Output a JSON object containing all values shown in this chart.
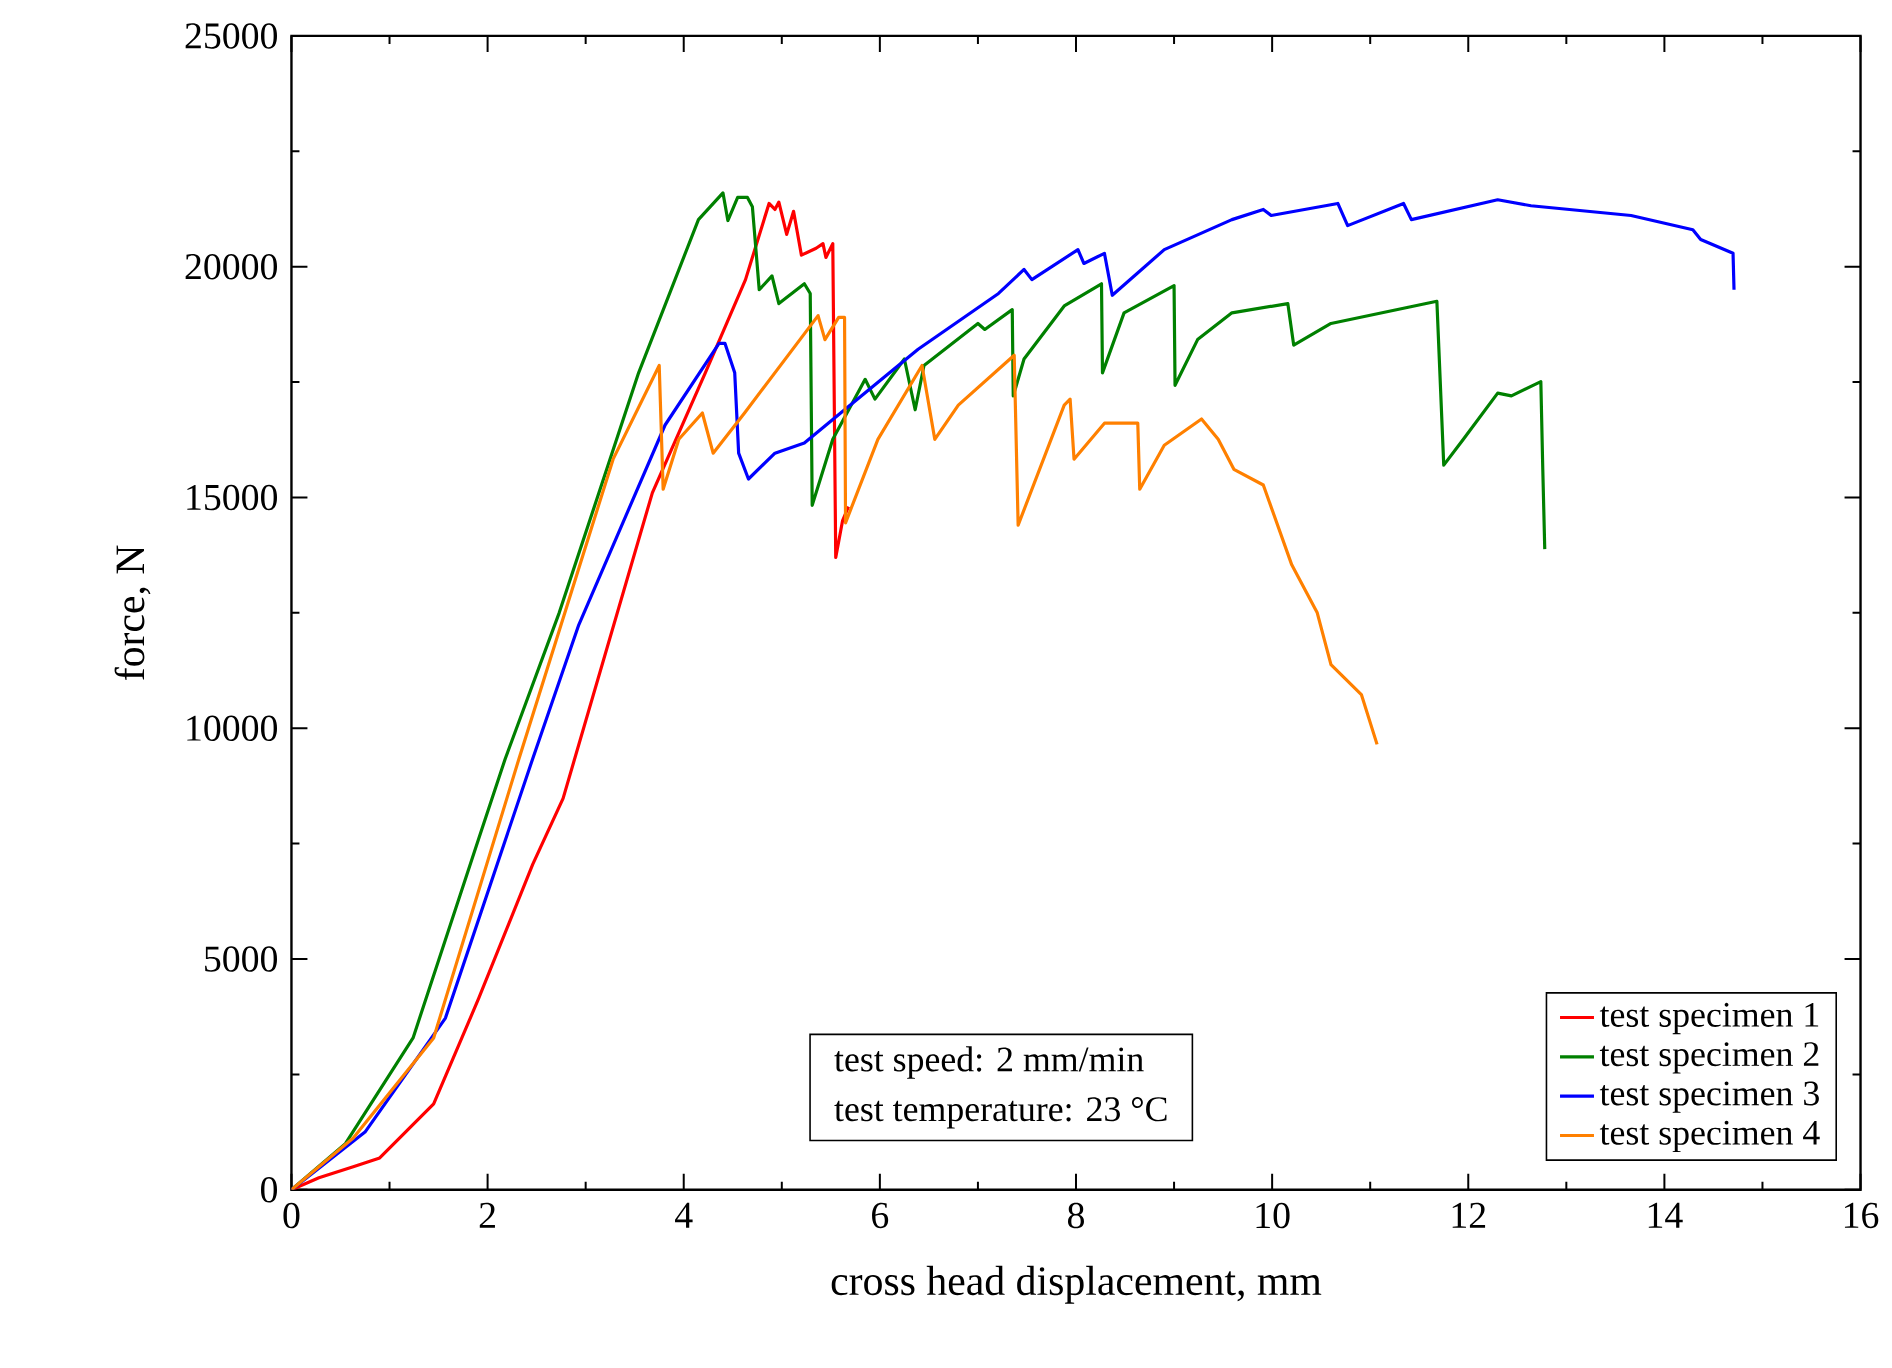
{
  "chart_data": {
    "type": "line",
    "xlabel": "cross head displacement, mm",
    "ylabel": "force, N",
    "xlim": [
      0,
      16
    ],
    "ylim": [
      0,
      25000
    ],
    "xticks": [
      0,
      2,
      4,
      6,
      8,
      10,
      12,
      14,
      16
    ],
    "yticks": [
      0,
      5000,
      10000,
      15000,
      20000,
      25000
    ],
    "legend": "bottom right",
    "grid": false,
    "marker": "none",
    "line_style": "solid",
    "annotations": [
      "test speed: 2 mm/min",
      "test temperature: 23 °C"
    ],
    "series": [
      {
        "name": "test specimen 1",
        "color": "#ff0000",
        "x": [
          0,
          0.28,
          0.63,
          0.9,
          1.45,
          1.91,
          2.46,
          2.77,
          3.68,
          4.22,
          4.63,
          4.87,
          4.93,
          4.97,
          5.05,
          5.12,
          5.2,
          5.35,
          5.42,
          5.45,
          5.52,
          5.55,
          5.62,
          5.68
        ],
        "values": [
          0,
          260,
          500,
          690,
          1860,
          4150,
          7050,
          8480,
          15100,
          17700,
          19720,
          21370,
          21240,
          21400,
          20700,
          21200,
          20250,
          20400,
          20500,
          20200,
          20500,
          13700,
          14500,
          14800
        ]
      },
      {
        "name": "test specimen 2",
        "color": "#008000",
        "x": [
          0,
          0.55,
          1.24,
          1.91,
          2.18,
          2.73,
          3.54,
          4.15,
          4.4,
          4.45,
          4.55,
          4.65,
          4.7,
          4.77,
          4.9,
          4.97,
          5.23,
          5.29,
          5.31,
          5.52,
          5.85,
          5.95,
          6.25,
          6.36,
          6.45,
          7.0,
          7.07,
          7.35,
          7.36,
          7.47,
          7.88,
          8.26,
          8.27,
          8.49,
          9.0,
          9.01,
          9.24,
          9.59,
          10.16,
          10.22,
          10.6,
          11.68,
          11.75,
          11.95,
          12.3,
          12.44,
          12.74,
          12.76,
          12.78
        ],
        "values": [
          0,
          1000,
          3290,
          7610,
          9340,
          12500,
          17700,
          21020,
          21600,
          21000,
          21500,
          21500,
          21300,
          19500,
          19800,
          19200,
          19630,
          19420,
          14830,
          16260,
          17560,
          17130,
          18000,
          16900,
          17860,
          18770,
          18640,
          19070,
          17200,
          18000,
          19150,
          19630,
          17700,
          19000,
          19590,
          17430,
          18420,
          19000,
          19200,
          18300,
          18770,
          19250,
          15700,
          16260,
          17260,
          17200,
          17510,
          15600,
          13880
        ]
      },
      {
        "name": "test specimen 3",
        "color": "#0000ff",
        "x": [
          0,
          0.75,
          1.57,
          2.46,
          2.93,
          3.81,
          4.36,
          4.42,
          4.52,
          4.56,
          4.66,
          4.93,
          5.23,
          5.64,
          6.39,
          7.21,
          7.47,
          7.55,
          8.02,
          8.08,
          8.29,
          8.37,
          8.9,
          9.59,
          9.91,
          9.99,
          10.67,
          10.77,
          11.34,
          11.42,
          12.3,
          12.64,
          13.66,
          14.29,
          14.37,
          14.7,
          14.71
        ],
        "values": [
          0,
          1250,
          3720,
          9340,
          12240,
          16570,
          18340,
          18340,
          17700,
          15960,
          15400,
          15960,
          16180,
          16900,
          18210,
          19420,
          19940,
          19720,
          20370,
          20070,
          20290,
          19380,
          20370,
          21020,
          21240,
          21110,
          21370,
          20890,
          21370,
          21020,
          21450,
          21320,
          21110,
          20800,
          20590,
          20290,
          19500
        ]
      },
      {
        "name": "test specimen 4",
        "color": "#ff8000",
        "x": [
          0,
          0.63,
          1.45,
          2.32,
          3.28,
          3.75,
          3.79,
          3.95,
          4.19,
          4.3,
          4.62,
          5.37,
          5.44,
          5.58,
          5.64,
          5.65,
          5.98,
          6.43,
          6.56,
          6.8,
          7.37,
          7.41,
          7.88,
          7.94,
          7.98,
          8.29,
          8.63,
          8.65,
          8.9,
          9.28,
          9.45,
          9.61,
          9.91,
          10.2,
          10.46,
          10.6,
          10.91,
          11.07
        ],
        "values": [
          0,
          1120,
          3290,
          9340,
          15830,
          17860,
          15180,
          16260,
          16830,
          15960,
          16830,
          18940,
          18420,
          18900,
          18900,
          14450,
          16260,
          17860,
          16260,
          17000,
          18080,
          14400,
          17000,
          17130,
          15830,
          16610,
          16610,
          15180,
          16130,
          16700,
          16260,
          15610,
          15270,
          13540,
          12500,
          11380,
          10730,
          9650
        ]
      }
    ]
  }
}
